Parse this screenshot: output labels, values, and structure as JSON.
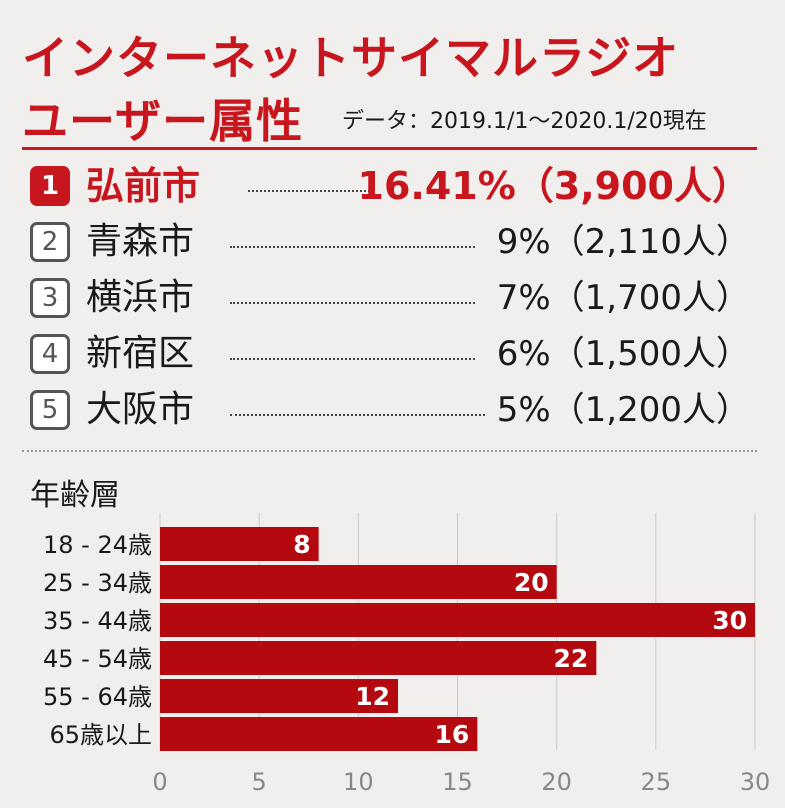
{
  "title_line1": "インターネットサイマルラジオ",
  "title_line2": "ユーザー属性",
  "subtitle": "データ：2019.1/1〜2020.1/20現在",
  "ranking": [
    {
      "rank": "1",
      "city": "弘前市",
      "value": "16.41%（3,900人）"
    },
    {
      "rank": "2",
      "city": "青森市",
      "value": "9%（2,110人）"
    },
    {
      "rank": "3",
      "city": "横浜市",
      "value": "7%（1,700人）"
    },
    {
      "rank": "4",
      "city": "新宿区",
      "value": "6%（1,500人）"
    },
    {
      "rank": "5",
      "city": "大阪市",
      "value": "5%（1,200人）"
    }
  ],
  "age_title": "年齢層",
  "colors": {
    "accent": "#c8161e",
    "bar": "#b3090f"
  },
  "chart_data": {
    "type": "bar",
    "orientation": "horizontal",
    "title": "年齢層",
    "categories": [
      "18 - 24歳",
      "25 - 34歳",
      "35 - 44歳",
      "45 - 54歳",
      "55 - 64歳",
      "65歳以上"
    ],
    "values": [
      8,
      20,
      30,
      22,
      12,
      16
    ],
    "xlim": [
      0,
      30
    ],
    "xticks": [
      "0",
      "5",
      "10",
      "15",
      "20",
      "25",
      "30"
    ],
    "grid": true
  }
}
